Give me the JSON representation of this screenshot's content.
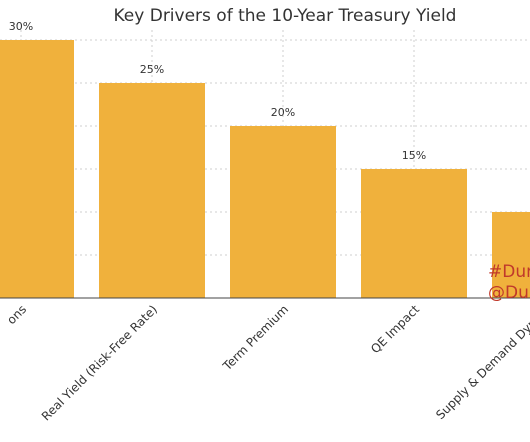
{
  "chart_data": {
    "type": "bar",
    "title": "Key Drivers of the 10-Year Treasury Yield",
    "categories": [
      "ons",
      "Real Yield (Risk-Free Rate)",
      "Term Premium",
      "QE Impact",
      "Supply & Demand Dynam"
    ],
    "values": [
      30,
      25,
      20,
      15,
      10
    ],
    "value_labels": [
      "30%",
      "25%",
      "20%",
      "15%",
      ""
    ],
    "ylim": [
      0,
      32
    ],
    "grid": true,
    "bar_color": "#f0b13c",
    "xlabel": "",
    "ylabel": ""
  },
  "watermark": {
    "line1": "#Dur",
    "line2": "@Du",
    "color": "#c0392b"
  }
}
